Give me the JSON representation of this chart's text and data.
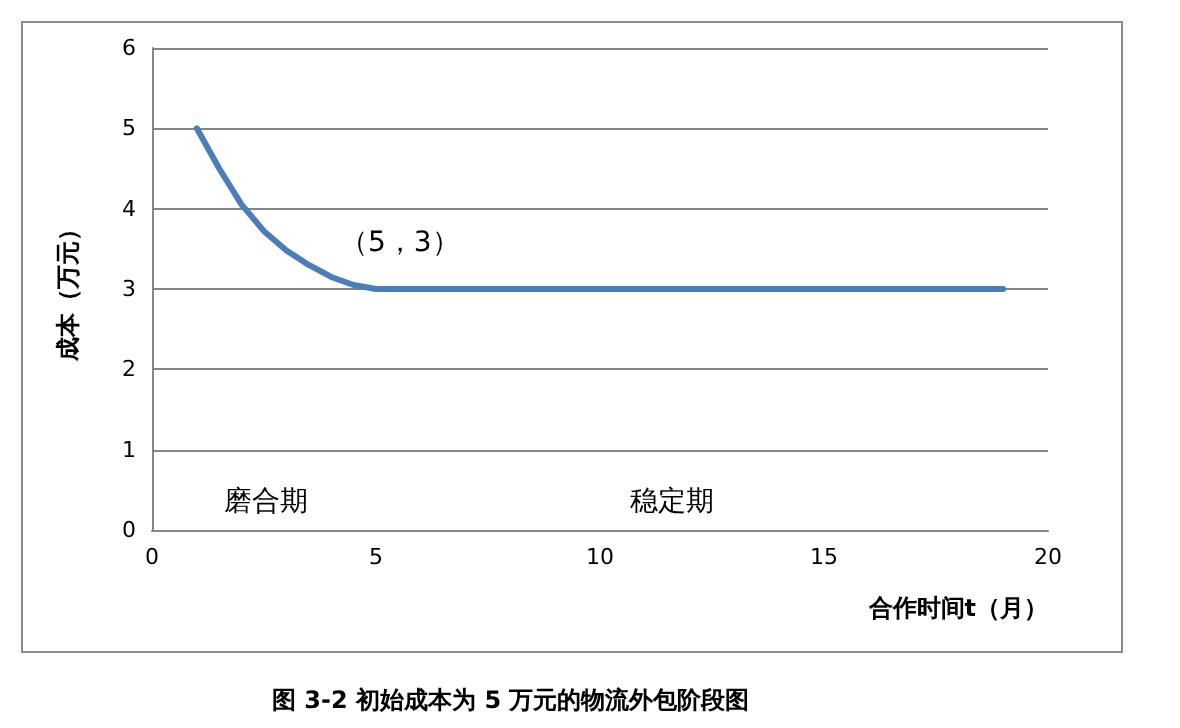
{
  "chart_data": {
    "type": "line",
    "title": "图 3-2 初始成本为 5 万元的物流外包阶段图",
    "xlabel": "合作时间t（月）",
    "ylabel": "成本（万元）",
    "x": [
      1,
      1.5,
      2,
      2.5,
      3,
      3.5,
      4,
      4.5,
      5,
      6,
      19
    ],
    "series": [
      {
        "color": "#4a7ebb",
        "values": [
          5,
          4.5,
          4.05,
          3.72,
          3.48,
          3.3,
          3.15,
          3.05,
          3,
          3,
          3
        ]
      }
    ],
    "xlim": [
      0,
      20
    ],
    "xticks": [
      0,
      5,
      10,
      15,
      20
    ],
    "ylim": [
      0,
      6
    ],
    "yticks": [
      0,
      1,
      2,
      3,
      4,
      5,
      6
    ],
    "grid": "y",
    "marker": "none",
    "line_style": "solid",
    "annotations": [
      {
        "text": "（5，3）",
        "x": 5,
        "y": 3
      },
      "磨合期",
      "稳定期"
    ]
  }
}
